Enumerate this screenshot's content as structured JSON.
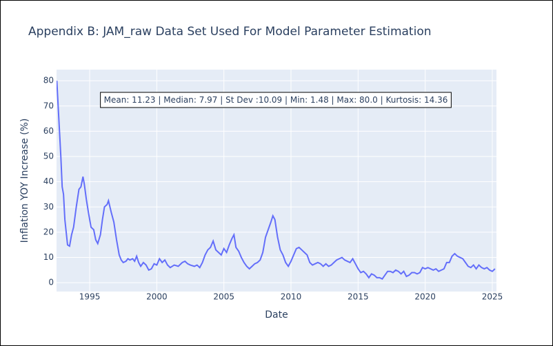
{
  "chart_data": {
    "type": "line",
    "title": "Appendix B: JAM_raw Data Set Used For Model Parameter Estimation",
    "x_label": "Date",
    "y_label": "Inflation YOY Increase (%)",
    "annotation": "Mean: 11.23 | Median: 7.97 | St Dev :10.09 | Min: 1.48 | Max: 80.0 | Kurtosis: 14.36",
    "xlim": [
      1992.53,
      2025.31
    ],
    "ylim": [
      -3.5,
      84.4
    ],
    "xticks": [
      1995,
      2000,
      2005,
      2010,
      2015,
      2020,
      2025
    ],
    "yticks": [
      0,
      10,
      20,
      30,
      40,
      50,
      60,
      70,
      80
    ],
    "grid": true,
    "series": [
      {
        "color": "#636efa",
        "x": [
          1992.55,
          1992.7,
          1992.85,
          1992.95,
          1993.05,
          1993.15,
          1993.25,
          1993.35,
          1993.5,
          1993.65,
          1993.8,
          1994.0,
          1994.2,
          1994.35,
          1994.5,
          1994.6,
          1994.75,
          1994.9,
          1995.1,
          1995.3,
          1995.45,
          1995.6,
          1995.8,
          1995.95,
          1996.1,
          1996.3,
          1996.4,
          1996.6,
          1996.8,
          1997.0,
          1997.2,
          1997.35,
          1997.5,
          1997.7,
          1997.85,
          1998.0,
          1998.2,
          1998.35,
          1998.5,
          1998.65,
          1998.8,
          1999.0,
          1999.2,
          1999.4,
          1999.6,
          1999.8,
          2000.0,
          2000.2,
          2000.4,
          2000.6,
          2000.8,
          2001.0,
          2001.3,
          2001.6,
          2001.9,
          2002.1,
          2002.3,
          2002.5,
          2002.8,
          2003.0,
          2003.2,
          2003.4,
          2003.6,
          2003.8,
          2004.0,
          2004.2,
          2004.4,
          2004.6,
          2004.8,
          2005.0,
          2005.2,
          2005.4,
          2005.6,
          2005.75,
          2005.9,
          2006.1,
          2006.3,
          2006.5,
          2006.7,
          2006.9,
          2007.1,
          2007.3,
          2007.5,
          2007.7,
          2007.9,
          2008.1,
          2008.3,
          2008.5,
          2008.65,
          2008.8,
          2009.0,
          2009.2,
          2009.4,
          2009.6,
          2009.8,
          2010.0,
          2010.2,
          2010.4,
          2010.6,
          2010.8,
          2011.0,
          2011.2,
          2011.4,
          2011.6,
          2011.8,
          2012.0,
          2012.2,
          2012.4,
          2012.6,
          2012.8,
          2013.0,
          2013.2,
          2013.4,
          2013.6,
          2013.8,
          2014.0,
          2014.2,
          2014.4,
          2014.6,
          2014.8,
          2015.0,
          2015.2,
          2015.4,
          2015.6,
          2015.8,
          2016.0,
          2016.2,
          2016.4,
          2016.6,
          2016.8,
          2017.0,
          2017.2,
          2017.4,
          2017.6,
          2017.8,
          2018.0,
          2018.2,
          2018.4,
          2018.6,
          2018.8,
          2019.0,
          2019.2,
          2019.4,
          2019.6,
          2019.8,
          2020.0,
          2020.2,
          2020.4,
          2020.6,
          2020.8,
          2021.0,
          2021.2,
          2021.4,
          2021.6,
          2021.8,
          2022.0,
          2022.2,
          2022.4,
          2022.6,
          2022.8,
          2023.0,
          2023.2,
          2023.4,
          2023.6,
          2023.8,
          2024.0,
          2024.2,
          2024.4,
          2024.6,
          2024.8,
          2025.0,
          2025.2
        ],
        "values": [
          80,
          65,
          50,
          38,
          35,
          25,
          20,
          15,
          14.5,
          19,
          22,
          30,
          37,
          38,
          42,
          39,
          33,
          28,
          22,
          21,
          17,
          15.5,
          19,
          25,
          30,
          31,
          32.5,
          28,
          24,
          17,
          11,
          9,
          8,
          8.5,
          9.5,
          9,
          9.5,
          8.5,
          10.5,
          8,
          6.5,
          8,
          7,
          5,
          5.5,
          7.5,
          7,
          9.5,
          8,
          9,
          7,
          6,
          7,
          6.5,
          8,
          8.5,
          7.5,
          7,
          6.5,
          7,
          6,
          8,
          11,
          13,
          14,
          16.5,
          13,
          12,
          11,
          13.5,
          12,
          15,
          17.5,
          19,
          14,
          12.5,
          10,
          8,
          6.5,
          5.5,
          6.5,
          7.5,
          8,
          9,
          12,
          18,
          21,
          24,
          26.5,
          25,
          18,
          13,
          11,
          8,
          6.5,
          8.5,
          11,
          13.5,
          14,
          13,
          12,
          11,
          8,
          7,
          7.5,
          8,
          7.5,
          6.5,
          7.5,
          6.5,
          7,
          8,
          9,
          9.5,
          10,
          9,
          8.5,
          8,
          9.5,
          7.5,
          5.5,
          4,
          4.5,
          3.5,
          2,
          3.5,
          3,
          2,
          2,
          1.5,
          3,
          4.5,
          4.5,
          4,
          5,
          4.5,
          3.5,
          4.5,
          2.5,
          3,
          4,
          4,
          3.5,
          4,
          6,
          5.5,
          6,
          5.5,
          5,
          5.5,
          4.5,
          5,
          5.5,
          8,
          8,
          10.5,
          11.5,
          10.5,
          10,
          9.5,
          8,
          6.5,
          6,
          7,
          5.5,
          7,
          6,
          5.5,
          6,
          5,
          4.5,
          5.5
        ]
      }
    ]
  }
}
